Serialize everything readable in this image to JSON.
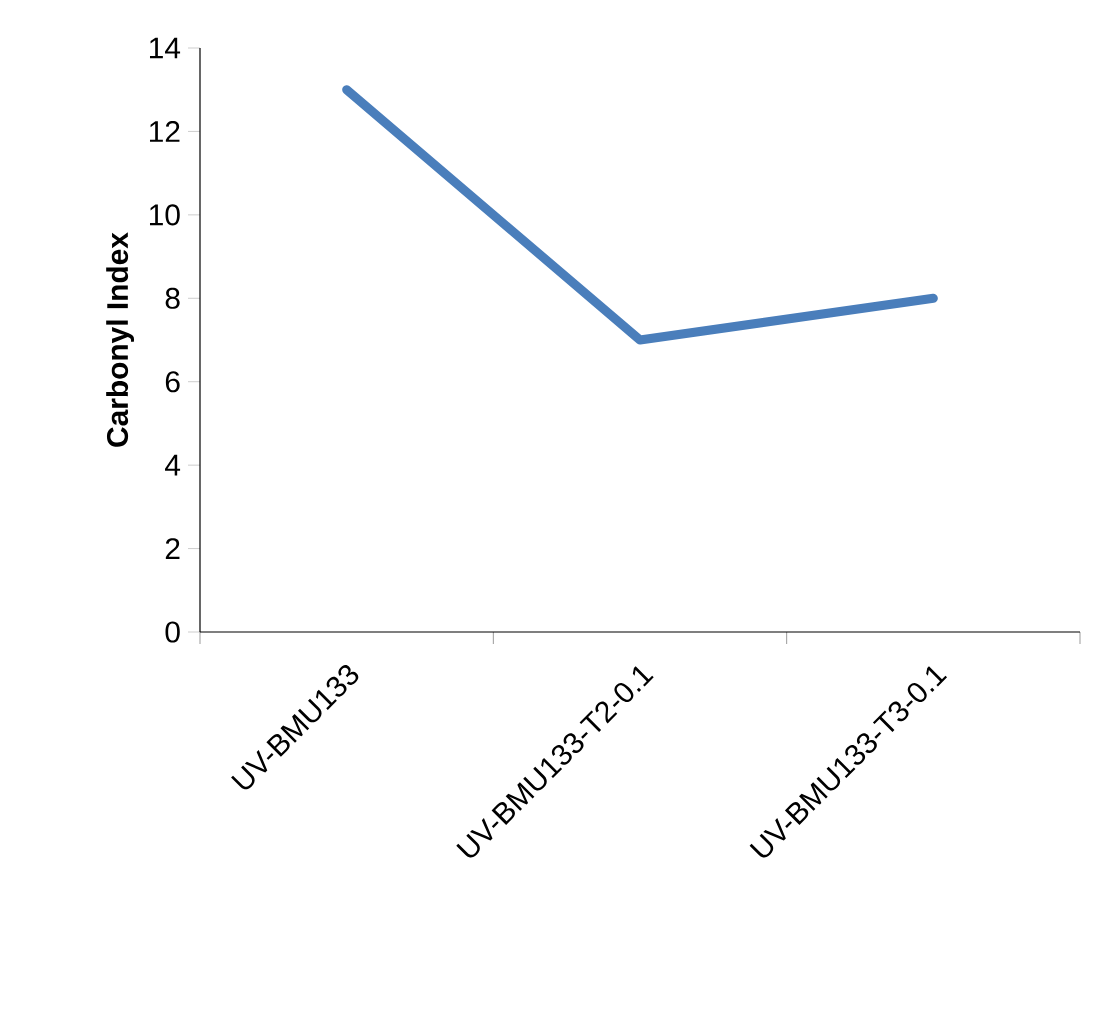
{
  "chart_data": {
    "type": "line",
    "ylabel": "Carbonyl Index",
    "categories": [
      "UV-BMU133",
      "UV-BMU133-T2-0.1",
      "UV-BMU133-T3-0.1"
    ],
    "series": [
      {
        "color": "#4a7ebb",
        "values": [
          13,
          7,
          8
        ]
      }
    ],
    "ylim": [
      0,
      14
    ],
    "yticks": [
      0,
      2,
      4,
      6,
      8,
      10,
      12,
      14
    ],
    "grid": false,
    "marker": "none",
    "line_style": "solid"
  }
}
